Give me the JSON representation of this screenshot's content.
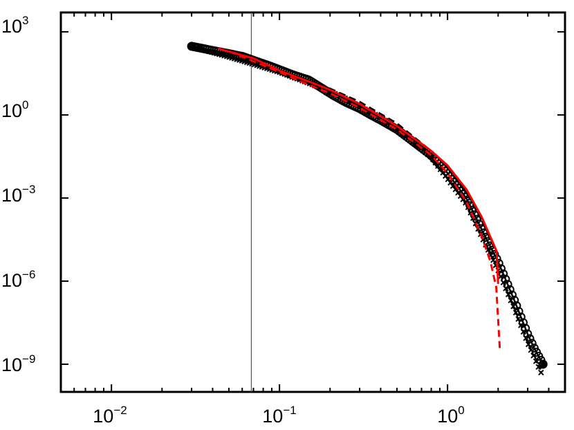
{
  "chart_data": {
    "type": "scatter",
    "x_scale": "log",
    "y_scale": "log",
    "xlim": [
      0.005,
      5
    ],
    "ylim": [
      1e-10,
      5000
    ],
    "grid": false,
    "x_ticks": [
      {
        "value": 0.01,
        "base": "10",
        "exp": "−2"
      },
      {
        "value": 0.1,
        "base": "10",
        "exp": "−1"
      },
      {
        "value": 1,
        "base": "10",
        "exp": "0"
      }
    ],
    "y_ticks": [
      {
        "value": 1000,
        "base": "10",
        "exp": "3"
      },
      {
        "value": 1,
        "base": "10",
        "exp": "0"
      },
      {
        "value": 0.001,
        "base": "10",
        "exp": "−3"
      },
      {
        "value": 1e-06,
        "base": "10",
        "exp": "−6"
      },
      {
        "value": 1e-09,
        "base": "10",
        "exp": "−9"
      }
    ],
    "vline_x": 0.068,
    "series": [
      {
        "style": "circles-solid",
        "color": "#000000",
        "x": [
          0.03,
          0.06,
          0.09,
          0.12,
          0.15,
          0.18,
          0.21,
          0.25,
          0.3,
          0.35,
          0.4,
          0.5,
          0.6,
          0.8,
          1.0,
          1.3,
          1.6,
          2.0,
          2.5,
          3.0,
          3.3,
          3.7
        ],
        "y": [
          300,
          130,
          55,
          28,
          18,
          9,
          5,
          2.8,
          1.7,
          1.0,
          0.65,
          0.3,
          0.13,
          0.035,
          0.008,
          0.00095,
          7e-05,
          5e-06,
          2e-07,
          1.2e-08,
          3.5e-09,
          1e-09
        ]
      },
      {
        "style": "crosses-dotted",
        "color": "#000000",
        "x": [
          0.03,
          0.06,
          0.1,
          0.15,
          0.2,
          0.25,
          0.3,
          0.4,
          0.5,
          0.6,
          0.8,
          1.0,
          1.3,
          1.6,
          2.0,
          2.5,
          3.0,
          3.6
        ],
        "y": [
          300,
          90,
          35,
          14,
          7,
          3.8,
          2.0,
          0.8,
          0.32,
          0.12,
          0.03,
          0.005,
          0.0006,
          4e-05,
          2.5e-06,
          1e-07,
          6e-09,
          5e-10
        ]
      },
      {
        "style": "black-dashed",
        "color": "#000000",
        "x": [
          0.03,
          0.06,
          0.1,
          0.15,
          0.2,
          0.3,
          0.5,
          0.8,
          1.0,
          1.3,
          1.6,
          1.9
        ],
        "y": [
          300,
          100,
          42,
          17,
          9,
          3,
          0.5,
          0.05,
          0.012,
          0.0015,
          0.00015,
          1.5e-05
        ]
      },
      {
        "style": "red-solid",
        "color": "#ff0000",
        "x": [
          0.043,
          0.07,
          0.1,
          0.15,
          0.2,
          0.3,
          0.5,
          0.8,
          1.0,
          1.3,
          1.6,
          1.96,
          2.0
        ],
        "y": [
          250,
          110,
          40,
          16,
          8,
          2.5,
          0.4,
          0.05,
          0.015,
          0.002,
          0.0002,
          1.2e-05,
          8e-07
        ]
      },
      {
        "style": "red-dashed",
        "color": "#ff0000",
        "x": [
          0.05,
          0.1,
          0.15,
          0.2,
          0.3,
          0.5,
          0.8,
          1.0,
          1.3,
          1.6,
          1.8,
          1.95,
          2.0,
          2.05
        ],
        "y": [
          200,
          35,
          12,
          6,
          1.8,
          0.3,
          0.035,
          0.008,
          0.0007,
          4e-05,
          5e-06,
          6e-07,
          4e-08,
          3e-09
        ]
      }
    ]
  }
}
